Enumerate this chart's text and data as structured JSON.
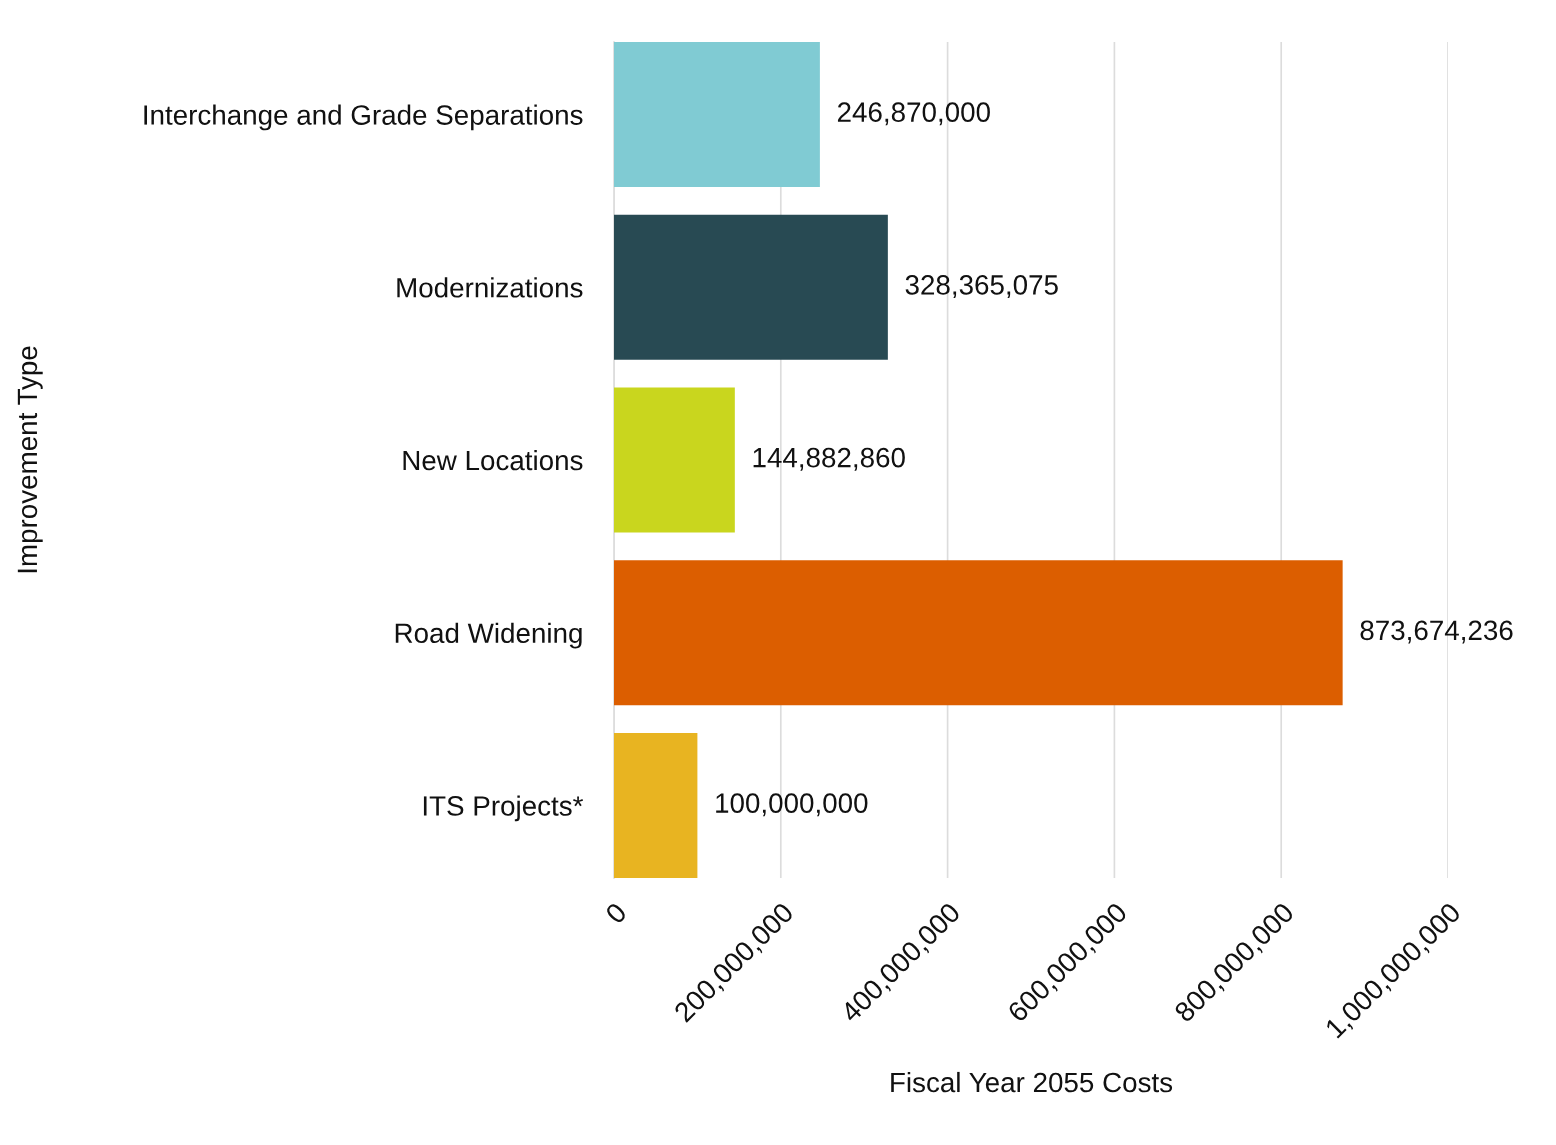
{
  "chart_data": {
    "type": "bar",
    "orientation": "horizontal",
    "xlabel": "Fiscal Year 2055 Costs",
    "ylabel": "Improvement Type",
    "categories": [
      "Interchange and Grade Separations",
      "Modernizations",
      "New Locations",
      "Road Widening",
      "ITS Projects*"
    ],
    "values": [
      246870000,
      328365075,
      144882860,
      873674236,
      100000000
    ],
    "colors": [
      "#80cbd3",
      "#284a53",
      "#c9d61e",
      "#dc5e00",
      "#e8b421"
    ],
    "value_labels": [
      "246,870,000",
      "328,365,075",
      "144,882,860",
      "873,674,236",
      "100,000,000"
    ],
    "xlim": [
      0,
      1000000000
    ],
    "xticks": [
      {
        "value": 0,
        "label": "0"
      },
      {
        "value": 200000000,
        "label": "200,000,000"
      },
      {
        "value": 400000000,
        "label": "400,000,000"
      },
      {
        "value": 600000000,
        "label": "600,000,000"
      },
      {
        "value": 800000000,
        "label": "800,000,000"
      },
      {
        "value": 1000000000,
        "label": "1,000,000,000"
      }
    ],
    "grid": "x",
    "legend": false
  }
}
